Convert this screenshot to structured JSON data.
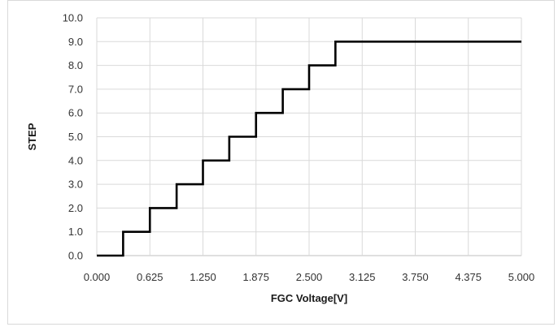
{
  "chart_data": {
    "type": "line",
    "step": true,
    "title": "",
    "xlabel": "FGC Voltage[V]",
    "ylabel": "STEP",
    "xlim": [
      0,
      5
    ],
    "ylim": [
      0,
      10
    ],
    "x_ticks": [
      0,
      0.625,
      1.25,
      1.875,
      2.5,
      3.125,
      3.75,
      4.375,
      5.0
    ],
    "x_tick_labels": [
      "0.000",
      "0.625",
      "1.250",
      "1.875",
      "2.500",
      "3.125",
      "3.750",
      "4.375",
      "5.000"
    ],
    "y_ticks": [
      0,
      1,
      2,
      3,
      4,
      5,
      6,
      7,
      8,
      9,
      10
    ],
    "y_tick_labels": [
      "0.0",
      "1.0",
      "2.0",
      "3.0",
      "4.0",
      "5.0",
      "6.0",
      "7.0",
      "8.0",
      "9.0",
      "10.0"
    ],
    "grid": true,
    "legend": "none",
    "series": [
      {
        "color": "#000000",
        "x": [
          0,
          0.31,
          0.31,
          0.625,
          0.625,
          0.94,
          0.94,
          1.25,
          1.25,
          1.56,
          1.56,
          1.875,
          1.875,
          2.19,
          2.19,
          2.5,
          2.5,
          2.81,
          2.81,
          5.0
        ],
        "y": [
          0,
          0,
          1,
          1,
          2,
          2,
          3,
          3,
          4,
          4,
          5,
          5,
          6,
          6,
          7,
          7,
          8,
          8,
          9,
          9
        ]
      }
    ]
  }
}
